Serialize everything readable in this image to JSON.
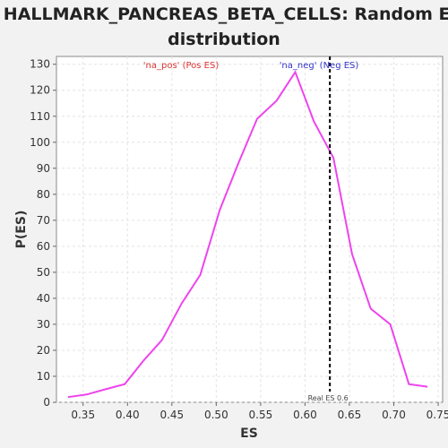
{
  "chart_data": {
    "type": "line",
    "title_line1": "HALLMARK_PANCREAS_BETA_CELLS: Random ES",
    "title_line2": "distribution",
    "xlabel": "ES",
    "ylabel": "P(ES)",
    "xlim": [
      0.32,
      0.755
    ],
    "ylim": [
      0,
      133
    ],
    "x_ticks": [
      "0.35",
      "0.40",
      "0.45",
      "0.50",
      "0.55",
      "0.60",
      "0.65",
      "0.70",
      "0.75"
    ],
    "y_ticks": [
      "0",
      "10",
      "20",
      "30",
      "40",
      "50",
      "60",
      "70",
      "80",
      "90",
      "100",
      "110",
      "120",
      "130"
    ],
    "grid": true,
    "series": [
      {
        "color": "#ee44ee",
        "x": [
          0.333,
          0.354,
          0.375,
          0.397,
          0.418,
          0.439,
          0.461,
          0.482,
          0.504,
          0.525,
          0.546,
          0.568,
          0.589,
          0.61,
          0.632,
          0.653,
          0.674,
          0.696,
          0.717,
          0.738
        ],
        "y": [
          2,
          3,
          5,
          7,
          16,
          24,
          38,
          49,
          74,
          92,
          109,
          116,
          127,
          108,
          94,
          57,
          36,
          30,
          7,
          6
        ]
      }
    ],
    "vline": {
      "x": 0.628,
      "label": "Real ES 0.6",
      "color": "#000000"
    },
    "annotations": {
      "pos": {
        "text": "'na_pos' (Pos ES)",
        "color": "#dd3333"
      },
      "neg": {
        "text": "'na_neg' (Neg ES)",
        "color": "#3333cc"
      }
    }
  }
}
